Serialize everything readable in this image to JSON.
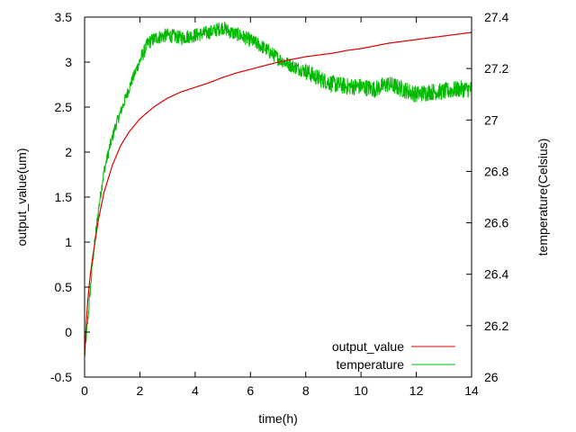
{
  "chart_data": {
    "type": "line",
    "xlabel": "time(h)",
    "ylabel": "output_value(um)",
    "y2label": "temperature(Celsius)",
    "xlim": [
      0,
      14
    ],
    "ylim": [
      -0.5,
      3.5
    ],
    "y2lim": [
      26,
      27.4
    ],
    "grid": false,
    "legend_position": "bottom-right",
    "x_ticks": [
      0,
      2,
      4,
      6,
      8,
      10,
      12,
      14
    ],
    "y_ticks": [
      -0.5,
      0,
      0.5,
      1,
      1.5,
      2,
      2.5,
      3,
      3.5
    ],
    "y2_ticks": [
      26,
      26.2,
      26.4,
      26.6,
      26.8,
      27,
      27.2,
      27.4
    ],
    "x_tick_labels": [
      "0",
      "2",
      "4",
      "6",
      "8",
      "10",
      "12",
      "14"
    ],
    "y_tick_labels": [
      "-0.5",
      "0",
      "0.5",
      "1",
      "1.5",
      "2",
      "2.5",
      "3",
      "3.5"
    ],
    "y2_tick_labels": [
      "26",
      "26.2",
      "26.4",
      "26.6",
      "26.8",
      "27",
      "27.2",
      "27.4"
    ],
    "series": [
      {
        "name": "output_value",
        "axis": "y",
        "color": "#dd0000",
        "x": [
          0,
          0.1,
          0.2,
          0.3,
          0.5,
          0.7,
          1.0,
          1.3,
          1.6,
          2.0,
          2.5,
          3.0,
          3.5,
          4.0,
          4.5,
          5.0,
          5.5,
          6.0,
          6.5,
          7.0,
          7.5,
          8.0,
          8.5,
          9.0,
          9.5,
          10.0,
          10.5,
          11.0,
          11.5,
          12.0,
          12.5,
          13.0,
          13.5,
          14.0
        ],
        "values": [
          -0.25,
          0.3,
          0.62,
          0.85,
          1.25,
          1.55,
          1.85,
          2.07,
          2.22,
          2.37,
          2.5,
          2.6,
          2.67,
          2.72,
          2.77,
          2.83,
          2.88,
          2.92,
          2.96,
          3.0,
          3.03,
          3.06,
          3.08,
          3.1,
          3.13,
          3.15,
          3.18,
          3.21,
          3.23,
          3.25,
          3.27,
          3.29,
          3.31,
          3.33
        ]
      },
      {
        "name": "temperature",
        "axis": "y2",
        "color": "#00bb00",
        "x": [
          0,
          0.1,
          0.2,
          0.3,
          0.5,
          0.7,
          0.9,
          1.1,
          1.3,
          1.5,
          1.7,
          2.0,
          2.3,
          2.6,
          3.0,
          3.5,
          4.0,
          4.5,
          5.0,
          5.3,
          5.6,
          6.0,
          6.5,
          7.0,
          7.5,
          8.0,
          8.5,
          9.0,
          9.5,
          10.0,
          10.5,
          11.0,
          11.5,
          12.0,
          12.5,
          13.0,
          13.5,
          14.0
        ],
        "values": [
          26.08,
          26.2,
          26.33,
          26.46,
          26.65,
          26.8,
          26.89,
          26.97,
          27.03,
          27.09,
          27.15,
          27.23,
          27.3,
          27.32,
          27.33,
          27.32,
          27.33,
          27.34,
          27.36,
          27.34,
          27.33,
          27.31,
          27.28,
          27.24,
          27.21,
          27.19,
          27.16,
          27.14,
          27.13,
          27.13,
          27.12,
          27.14,
          27.12,
          27.1,
          27.11,
          27.11,
          27.12,
          27.12
        ]
      }
    ]
  }
}
